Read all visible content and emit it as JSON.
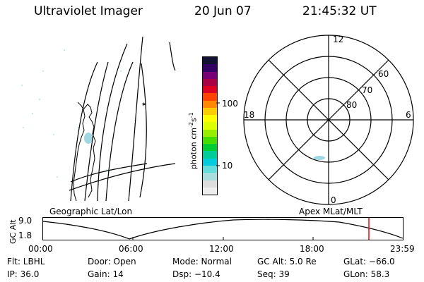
{
  "header": {
    "instrument": "Ultraviolet Imager",
    "date": "20 Jun 07",
    "time": "21:45:32 UT"
  },
  "colorbar": {
    "label_main": "photon cm",
    "label_exp1": "-2",
    "label_mid": "s",
    "label_exp2": "-1",
    "tick_labels": [
      "100",
      "10"
    ],
    "colors": [
      "#111133",
      "#330066",
      "#770077",
      "#aa0044",
      "#dd0022",
      "#ff4400",
      "#ff8800",
      "#ffcc00",
      "#ffff00",
      "#ddff00",
      "#99ee00",
      "#44dd00",
      "#00cc33",
      "#00cc99",
      "#00ccdd",
      "#66dddd",
      "#aadddd",
      "#dddddd",
      "#eeeeee"
    ]
  },
  "geographic_panel": {
    "caption": "Geographic Lat/Lon"
  },
  "polar_panel": {
    "caption": "Apex MLat/MLT",
    "mlt_labels": [
      "12",
      "18",
      "6",
      "0"
    ],
    "mlat_labels": [
      "60",
      "70",
      "80"
    ]
  },
  "altitude_plot": {
    "ylabel": "GC Alt",
    "ytick_labels": [
      "9.0",
      "1.8"
    ],
    "xtick_labels": [
      "00:00",
      "06:00",
      "12:00",
      "18:00",
      "23:59"
    ],
    "marker_color": "#ff0000"
  },
  "info": {
    "flt": "Flt: LBHL",
    "door": "Door: Open",
    "mode": "Mode: Normal",
    "gcalt": "GC Alt: 5.0 Re",
    "glat": "GLat: −66.0",
    "ip": "IP: 36.0",
    "gain": "Gain: 14",
    "dsp": "Dsp:  −10.4",
    "seq": "Seq: 39",
    "glon": "GLon:  58.3"
  }
}
